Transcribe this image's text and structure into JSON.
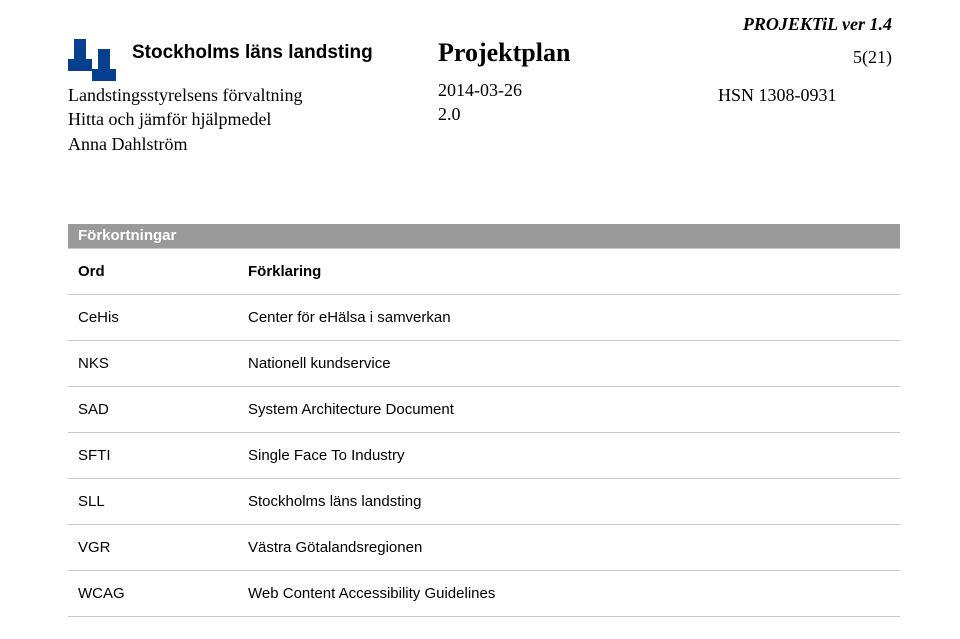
{
  "doc": {
    "version_banner": "PROJEKTiL ver 1.4",
    "page_indicator": "5(21)"
  },
  "header": {
    "org_name": "Stockholms läns landsting",
    "org_lines": {
      "l1": "Landstingsstyrelsens förvaltning",
      "l2": "Hitta och jämför hjälpmedel",
      "l3": "Anna Dahlström"
    },
    "title": "Projektplan",
    "date": "2014-03-26",
    "doc_ver": "2.0",
    "ref": "HSN 1308-0931",
    "logo_color": "#063e90"
  },
  "abbr": {
    "section_title": "Förkortningar",
    "col_term": "Ord",
    "col_desc": "Förklaring",
    "rows": [
      {
        "term": "CeHis",
        "desc": "Center för eHälsa i samverkan"
      },
      {
        "term": "NKS",
        "desc": "Nationell kundservice"
      },
      {
        "term": "SAD",
        "desc": "System Architecture Document"
      },
      {
        "term": "SFTI",
        "desc": "Single Face To Industry"
      },
      {
        "term": "SLL",
        "desc": "Stockholms läns landsting"
      },
      {
        "term": "VGR",
        "desc": "Västra Götalandsregionen"
      },
      {
        "term": "WCAG",
        "desc": "Web Content Accessibility Guidelines"
      }
    ]
  },
  "style": {
    "table_border": "#c9c9c9",
    "bar_bg": "#9a9a9a",
    "bar_fg": "#ffffff"
  }
}
